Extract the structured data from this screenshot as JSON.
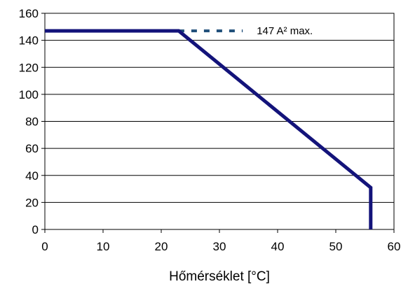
{
  "chart_data": {
    "type": "line",
    "title": "",
    "xlabel": "Hőmérséklet [°C]",
    "ylabel": "",
    "xlim": [
      0,
      60
    ],
    "ylim": [
      0,
      160
    ],
    "xticks": [
      0,
      10,
      20,
      30,
      40,
      50,
      60
    ],
    "yticks": [
      0,
      20,
      40,
      60,
      80,
      100,
      120,
      140,
      160
    ],
    "grid": "horizontal",
    "series": [
      {
        "color": "#13137a",
        "points": [
          {
            "x": 0,
            "y": 147
          },
          {
            "x": 23,
            "y": 147
          },
          {
            "x": 56,
            "y": 31
          },
          {
            "x": 56,
            "y": 0
          }
        ]
      }
    ],
    "annotations": [
      {
        "text": "147 A² max.",
        "style": "dotted",
        "color": "#1f4e79",
        "from_x": 23,
        "to_x": 34,
        "y": 147
      }
    ]
  }
}
